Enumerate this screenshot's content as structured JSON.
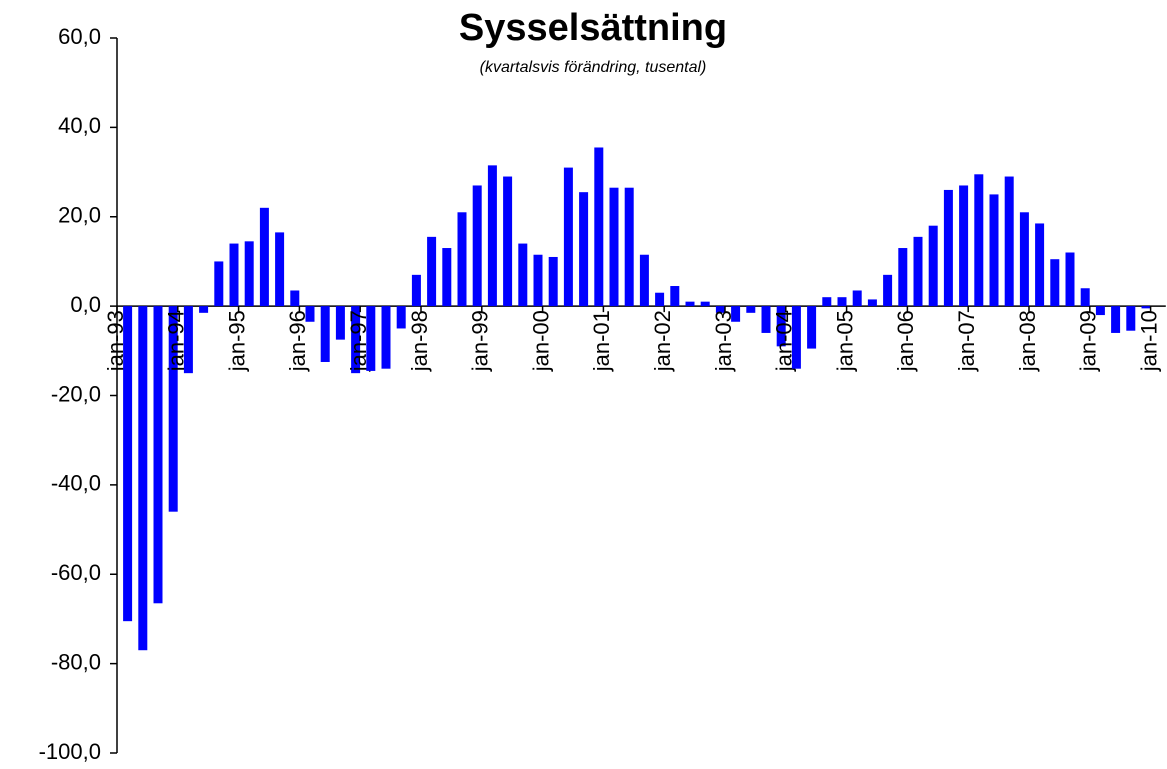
{
  "chart_data": {
    "type": "bar",
    "title": "Sysselsättning",
    "subtitle": "(kvartalsvis förändring, tusental)",
    "color": "#0000ff",
    "categories": [
      "jan-93",
      null,
      null,
      null,
      "jan-94",
      null,
      null,
      null,
      "jan-95",
      null,
      null,
      null,
      "jan-96",
      null,
      null,
      null,
      "jan-97",
      null,
      null,
      null,
      "jan-98",
      null,
      null,
      null,
      "jan-99",
      null,
      null,
      null,
      "jan-00",
      null,
      null,
      null,
      "jan-01",
      null,
      null,
      null,
      "jan-02",
      null,
      null,
      null,
      "jan-03",
      null,
      null,
      null,
      "jan-04",
      null,
      null,
      null,
      "jan-05",
      null,
      null,
      null,
      "jan-06",
      null,
      null,
      null,
      "jan-07",
      null,
      null,
      null,
      "jan-08",
      null,
      null,
      null,
      "jan-09",
      null,
      null,
      null,
      "jan-10"
    ],
    "values": [
      -70.5,
      -77,
      -66.5,
      -46,
      -15,
      -1.5,
      10,
      14,
      14.5,
      22,
      16.5,
      3.5,
      -3.5,
      -12.5,
      -7.5,
      -15,
      -14.5,
      -14,
      -5,
      7,
      15.5,
      13,
      21,
      27,
      31.5,
      29,
      14,
      11.5,
      11,
      31,
      25.5,
      35.5,
      26.5,
      26.5,
      11.5,
      3,
      4.5,
      1,
      1,
      -1.5,
      -3.5,
      -1.5,
      -6,
      -9,
      -14,
      -9.5,
      2,
      2,
      3.5,
      1.5,
      7,
      13,
      15.5,
      18,
      26,
      27,
      29.5,
      25,
      29,
      21,
      18.5,
      10.5,
      12,
      4,
      -2,
      -6,
      -5.5,
      -0.5,
      null
    ],
    "ylim": [
      -100,
      60
    ],
    "yticks": [
      {
        "value": -100,
        "label": "-100,0"
      },
      {
        "value": -80,
        "label": "-80,0"
      },
      {
        "value": -60,
        "label": "-60,0"
      },
      {
        "value": -40,
        "label": "-40,0"
      },
      {
        "value": -20,
        "label": "-20,0"
      },
      {
        "value": 0,
        "label": "0,0"
      },
      {
        "value": 20,
        "label": "20,0"
      },
      {
        "value": 40,
        "label": "40,0"
      },
      {
        "value": 60,
        "label": "60,0"
      }
    ],
    "grid": false
  }
}
